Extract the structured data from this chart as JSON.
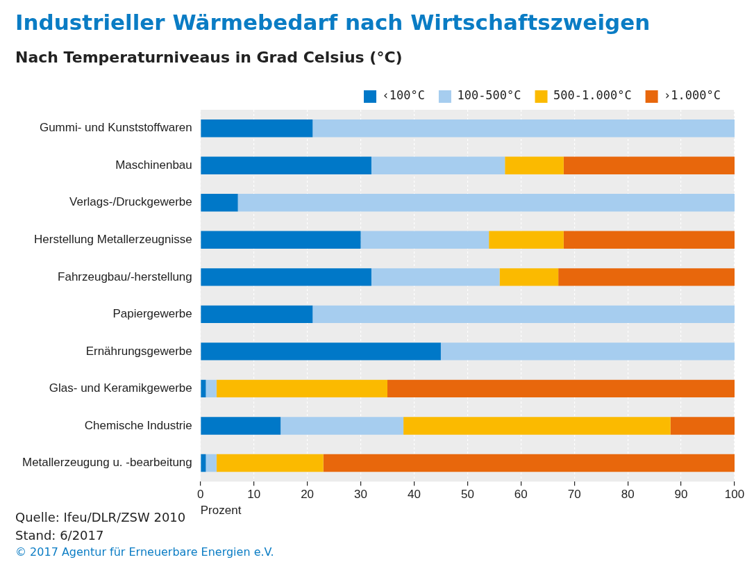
{
  "chart_data": {
    "type": "bar",
    "orientation": "horizontal",
    "stacked": true,
    "title": "Industrieller Wärmebedarf nach Wirtschaftszweigen",
    "subtitle": "Nach Temperaturniveaus in Grad Celsius (°C)",
    "xlabel": "Prozent",
    "categories": [
      "Gummi- und Kunststoffwaren",
      "Maschinenbau",
      "Verlags-/Druckgewerbe",
      "Herstellung Metallerzeugnisse",
      "Fahrzeugbau/-herstellung",
      "Papiergewerbe",
      "Ernährungsgewerbe",
      "Glas- und Keramikgewerbe",
      "Chemische Industrie",
      "Metallerzeugung u. -bearbeitung"
    ],
    "series": [
      {
        "name": "‹100°C",
        "color": "#0078c8",
        "values": [
          21,
          32,
          7,
          30,
          32,
          21,
          45,
          1,
          15,
          1
        ]
      },
      {
        "name": "100-500°C",
        "color": "#a6cdef",
        "values": [
          79,
          25,
          93,
          24,
          24,
          79,
          55,
          2,
          23,
          2
        ]
      },
      {
        "name": "500-1.000°C",
        "color": "#fbba00",
        "values": [
          0,
          11,
          0,
          14,
          11,
          0,
          0,
          32,
          50,
          20
        ]
      },
      {
        "name": "›1.000°C",
        "color": "#e8670c",
        "values": [
          0,
          32,
          0,
          32,
          33,
          0,
          0,
          65,
          12,
          77
        ]
      }
    ],
    "xlim": [
      0,
      100
    ],
    "xticks": [
      0,
      10,
      20,
      30,
      40,
      50,
      60,
      70,
      80,
      90,
      100
    ],
    "grid": "x",
    "legend": "top right",
    "annotations": [
      "Quelle: Ifeu/DLR/ZSW 2010",
      "Stand: 6/2017",
      "© 2017 Agentur für Erneuerbare Energien e.V."
    ]
  }
}
